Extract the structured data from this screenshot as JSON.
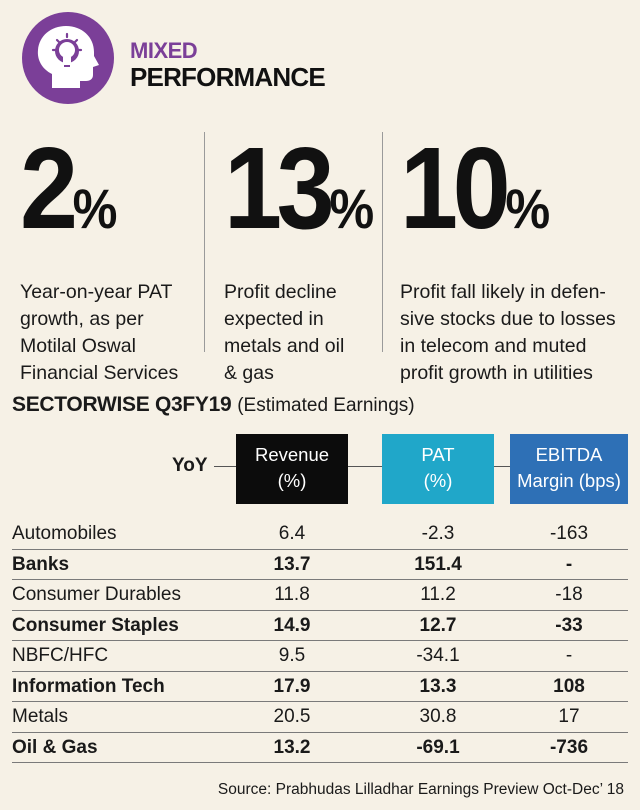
{
  "header": {
    "title_line1": "MIXED",
    "title_line2": "PERFORMANCE",
    "badge_color": "#7b3f98",
    "badge_icon": "head-with-lightbulb-icon"
  },
  "stats": [
    {
      "value": "2",
      "unit": "%",
      "description": [
        "Year-on-year PAT",
        "growth, as per",
        "Motilal Oswal",
        "Financial Services"
      ]
    },
    {
      "value": "13",
      "unit": "%",
      "description": [
        "Profit decline",
        "expected in",
        "metals and oil",
        "& gas"
      ]
    },
    {
      "value": "10",
      "unit": "%",
      "description": [
        "Profit fall likely in defen-",
        "sive stocks due to losses",
        "in telecom and muted",
        "profit growth in utilities"
      ]
    }
  ],
  "chart_data": {
    "type": "table",
    "title": "SECTORWISE Q3FY19",
    "subtitle": "(Estimated Earnings)",
    "row_header_label": "YoY",
    "columns": [
      {
        "line1": "Revenue",
        "line2": "(%)",
        "color": "#0c0c0c"
      },
      {
        "line1": "PAT",
        "line2": "(%)",
        "color": "#20a7c9"
      },
      {
        "line1": "EBITDA",
        "line2": "Margin (bps)",
        "color": "#2e70b6"
      }
    ],
    "rows": [
      {
        "sector": "Automobiles",
        "revenue": "6.4",
        "pat": "-2.3",
        "ebitda": "-163",
        "bold": false
      },
      {
        "sector": "Banks",
        "revenue": "13.7",
        "pat": "151.4",
        "ebitda": "-",
        "bold": true
      },
      {
        "sector": "Consumer Durables",
        "revenue": "11.8",
        "pat": "11.2",
        "ebitda": "-18",
        "bold": false
      },
      {
        "sector": "Consumer Staples",
        "revenue": "14.9",
        "pat": "12.7",
        "ebitda": "-33",
        "bold": true
      },
      {
        "sector": "NBFC/HFC",
        "revenue": "9.5",
        "pat": "-34.1",
        "ebitda": "-",
        "bold": false
      },
      {
        "sector": "Information Tech",
        "revenue": "17.9",
        "pat": "13.3",
        "ebitda": "108",
        "bold": true
      },
      {
        "sector": "Metals",
        "revenue": "20.5",
        "pat": "30.8",
        "ebitda": "17",
        "bold": false
      },
      {
        "sector": "Oil & Gas",
        "revenue": "13.2",
        "pat": "-69.1",
        "ebitda": "-736",
        "bold": true
      }
    ],
    "source": "Source: Prabhudas Lilladhar Earnings Preview Oct-Dec’ 18"
  }
}
